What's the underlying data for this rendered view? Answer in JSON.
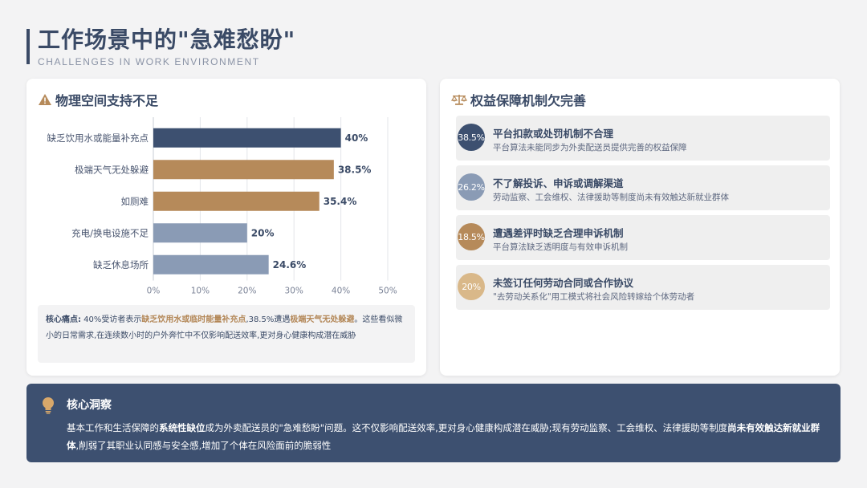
{
  "header": {
    "title": "工作场景中的\"急难愁盼\"",
    "subtitle": "CHALLENGES IN WORK ENVIRONMENT"
  },
  "left_card": {
    "title": "物理空间支持不足",
    "icon": "warning-icon",
    "note": {
      "label": "核心痛点:",
      "seg1": " 40%受访者表示",
      "hl1": "缺乏饮用水或临时能量补充点",
      "seg2": ",38.5%遭遇",
      "hl2": "极端天气无处躲避",
      "seg3": "。这些看似微小的日常需求,在连续数小时的户外奔忙中不仅影响配送效率,更对身心健康构成潜在威胁"
    }
  },
  "chart_data": {
    "type": "bar",
    "orientation": "horizontal",
    "categories": [
      "缺乏饮用水或能量补充点",
      "极端天气无处躲避",
      "如厕难",
      "充电/换电设施不足",
      "缺乏休息场所"
    ],
    "values": [
      40,
      38.5,
      35.4,
      20,
      24.6
    ],
    "value_labels": [
      "40%",
      "38.5%",
      "35.4%",
      "20%",
      "24.6%"
    ],
    "bar_colors": [
      "#3d5070",
      "#b68a5a",
      "#b68a5a",
      "#8a9bb5",
      "#8a9bb5"
    ],
    "xlim": [
      0,
      50
    ],
    "xticks": [
      "0%",
      "10%",
      "20%",
      "30%",
      "40%",
      "50%"
    ],
    "grid": true
  },
  "right_card": {
    "title": "权益保障机制欠完善",
    "icon": "scale-icon",
    "issues": [
      {
        "badge": "38.5%",
        "color": "#3d5070",
        "title": "平台扣款或处罚机制不合理",
        "desc": "平台算法未能同步为外卖配送员提供完善的权益保障"
      },
      {
        "badge": "26.2%",
        "color": "#8a9bb5",
        "title": "不了解投诉、申诉或调解渠道",
        "desc": "劳动监察、工会维权、法律援助等制度尚未有效触达新就业群体"
      },
      {
        "badge": "18.5%",
        "color": "#b68a5a",
        "title": "遭遇差评时缺乏合理申诉机制",
        "desc": "平台算法缺乏透明度与有效申诉机制"
      },
      {
        "badge": "20%",
        "color": "#d9b889",
        "title": "未签订任何劳动合同或合作协议",
        "desc": "\"去劳动关系化\"用工模式将社会风险转嫁给个体劳动者"
      }
    ]
  },
  "insight": {
    "title": "核心洞察",
    "icon": "lightbulb-icon",
    "p1": "基本工作和生活保障的",
    "b1": "系统性缺位",
    "p2": "成为外卖配送员的\"急难愁盼\"问题。这不仅影响配送效率,更对身心健康构成潜在威胁;现有劳动监察、工会维权、法律援助等制度",
    "b2": "尚未有效触达新就业群体",
    "p3": ",削弱了其职业认同感与安全感,增加了个体在风险面前的脆弱性"
  }
}
